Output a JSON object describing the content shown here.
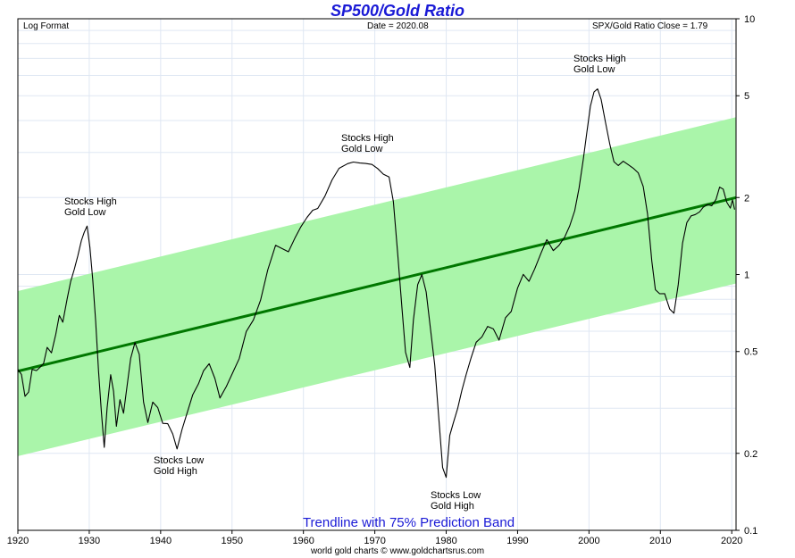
{
  "chart_data": {
    "type": "line",
    "title": "SP500/Gold Ratio",
    "subtitle": "Trendline with 75% Prediction Band",
    "corner_left": "Log Format",
    "corner_center": "Date = 2020.08",
    "corner_right": "SPX/Gold Ratio Close = 1.79",
    "footer": "world gold charts © www.goldchartsrus.com",
    "y_scale": "log",
    "ylim": [
      0.1,
      10
    ],
    "xlim": [
      1920,
      2020.6
    ],
    "x_ticks": [
      1920,
      1930,
      1940,
      1950,
      1960,
      1970,
      1980,
      1990,
      2000,
      2010,
      2020
    ],
    "y_ticks": [
      0.1,
      0.2,
      0.5,
      1,
      2,
      5,
      10
    ],
    "y_tick_labels": [
      "0.1",
      "0.2",
      "0.5",
      "1",
      "2",
      "5",
      "10"
    ],
    "grid": true,
    "series": [
      {
        "values_x": [
          1920,
          1920.5,
          1921,
          1921.5,
          1922,
          1922.6,
          1923.1,
          1923.6,
          1924.1,
          1924.7,
          1925.3,
          1925.8,
          1926.3,
          1926.9,
          1927.4,
          1927.9,
          1928.4,
          1928.9,
          1929.3,
          1929.7,
          1930.1,
          1930.5,
          1930.9,
          1931.3,
          1931.7,
          1932.1,
          1932.5,
          1933,
          1933.4,
          1933.8,
          1934.3,
          1934.8,
          1935.3,
          1935.8,
          1936.4,
          1937,
          1937.6,
          1938.2,
          1938.9,
          1939.6,
          1940.3,
          1941,
          1941.7,
          1942.3,
          1943,
          1943.8,
          1944.5,
          1945.3,
          1946,
          1946.8,
          1947.6,
          1948.3,
          1949.2,
          1950,
          1951,
          1952,
          1953,
          1954,
          1955,
          1956.1,
          1957,
          1957.9,
          1958.8,
          1959.6,
          1960.5,
          1961.3,
          1962,
          1963,
          1964,
          1965,
          1966.2,
          1967,
          1967.9,
          1968.7,
          1969.6,
          1970.4,
          1971.2,
          1972,
          1972.6,
          1973.2,
          1973.8,
          1974.3,
          1974.9,
          1975.4,
          1976,
          1976.6,
          1977.2,
          1977.8,
          1978.4,
          1979,
          1979.5,
          1980,
          1980.5,
          1981,
          1981.6,
          1982.2,
          1982.8,
          1983.5,
          1984.2,
          1985,
          1985.8,
          1986.6,
          1987.4,
          1988.3,
          1989.1,
          1990,
          1990.8,
          1991.6,
          1992.4,
          1993.3,
          1994.1,
          1995,
          1995.8,
          1996.6,
          1997.3,
          1998,
          1998.6,
          1999.2,
          1999.7,
          2000.2,
          2000.7,
          2001.2,
          2001.7,
          2002.3,
          2002.9,
          2003.5,
          2004.1,
          2004.8,
          2005.5,
          2006.2,
          2006.9,
          2007.6,
          2008.2,
          2008.8,
          2009.3,
          2009.9,
          2010.6,
          2011.3,
          2011.9,
          2012.5,
          2013.1,
          2013.7,
          2014.3,
          2014.9,
          2015.5,
          2016,
          2016.6,
          2017.2,
          2017.8,
          2018.3,
          2018.8,
          2019.3,
          2019.8,
          2020.1,
          2020.4
        ],
        "values": [
          0.426,
          0.407,
          0.334,
          0.347,
          0.426,
          0.421,
          0.434,
          0.449,
          0.519,
          0.494,
          0.583,
          0.692,
          0.651,
          0.801,
          0.939,
          1.046,
          1.183,
          1.357,
          1.462,
          1.547,
          1.273,
          0.948,
          0.656,
          0.42,
          0.29,
          0.211,
          0.301,
          0.406,
          0.35,
          0.255,
          0.324,
          0.287,
          0.368,
          0.47,
          0.542,
          0.488,
          0.317,
          0.264,
          0.317,
          0.302,
          0.262,
          0.261,
          0.238,
          0.208,
          0.248,
          0.293,
          0.339,
          0.374,
          0.42,
          0.448,
          0.392,
          0.329,
          0.365,
          0.408,
          0.469,
          0.599,
          0.665,
          0.794,
          1.041,
          1.301,
          1.263,
          1.227,
          1.387,
          1.53,
          1.672,
          1.784,
          1.812,
          2.023,
          2.343,
          2.602,
          2.713,
          2.753,
          2.729,
          2.718,
          2.694,
          2.595,
          2.468,
          2.406,
          1.925,
          1.209,
          0.739,
          0.497,
          0.433,
          0.664,
          0.913,
          0.999,
          0.855,
          0.614,
          0.442,
          0.267,
          0.176,
          0.161,
          0.235,
          0.263,
          0.299,
          0.353,
          0.407,
          0.474,
          0.544,
          0.57,
          0.627,
          0.613,
          0.554,
          0.678,
          0.717,
          0.885,
          1.002,
          0.941,
          1.052,
          1.216,
          1.369,
          1.24,
          1.301,
          1.402,
          1.55,
          1.776,
          2.172,
          2.823,
          3.602,
          4.559,
          5.173,
          5.317,
          4.832,
          3.958,
          3.253,
          2.761,
          2.669,
          2.774,
          2.689,
          2.604,
          2.498,
          2.209,
          1.727,
          1.129,
          0.872,
          0.841,
          0.842,
          0.733,
          0.706,
          0.914,
          1.326,
          1.597,
          1.696,
          1.716,
          1.758,
          1.832,
          1.878,
          1.857,
          1.968,
          2.196,
          2.158,
          1.918,
          1.819,
          1.958,
          1.794
        ]
      }
    ],
    "trendline": {
      "x": [
        1920,
        2020.6
      ],
      "y": [
        0.419,
        1.999
      ]
    },
    "prediction_band": {
      "x": [
        1920,
        2020.6
      ],
      "upper": [
        0.862,
        4.121
      ],
      "lower": [
        0.195,
        0.923
      ]
    },
    "annotations": [
      {
        "line1": "Stocks High",
        "line2": "Gold Low"
      },
      {
        "line1": "Stocks Low",
        "line2": "Gold High"
      },
      {
        "line1": "Stocks High",
        "line2": "Gold Low"
      },
      {
        "line1": "Stocks Low",
        "line2": "Gold High"
      },
      {
        "line1": "Stocks High",
        "line2": "Gold Low"
      }
    ],
    "colors": {
      "title": "#1a1ad6",
      "subtitle": "#1a1ad6",
      "band": "#aaf5aa",
      "trendline": "#007700",
      "price": "#000000",
      "grid": "#dfe7f3"
    }
  }
}
